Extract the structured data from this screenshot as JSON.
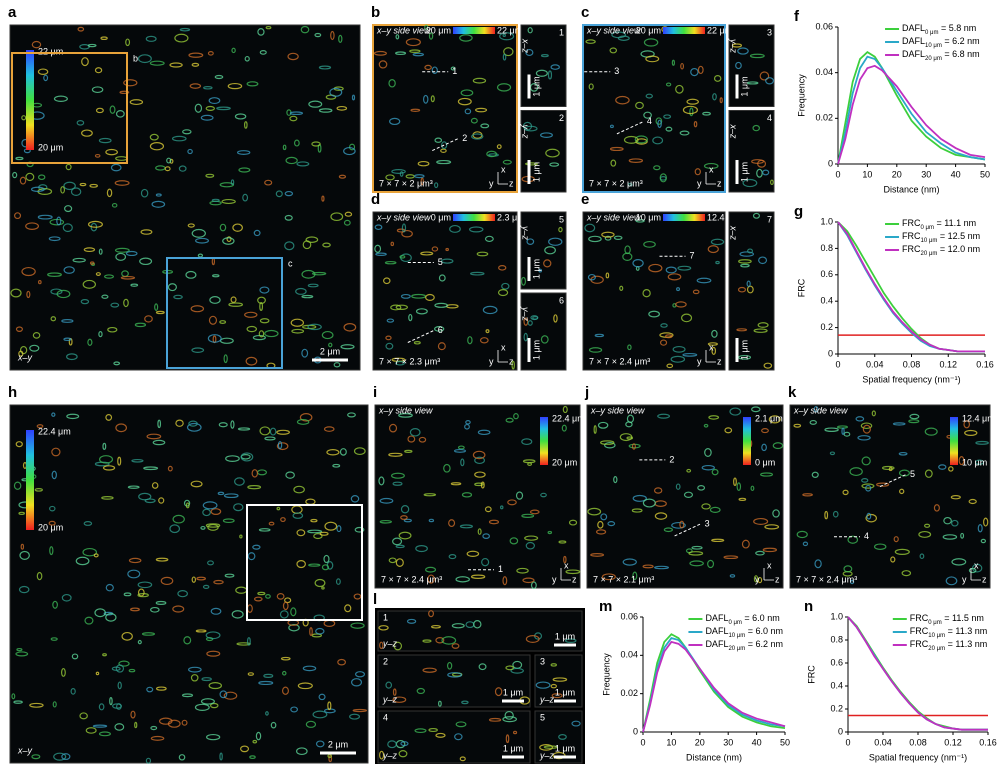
{
  "panels": [
    {
      "label": "a",
      "view": "x–y",
      "scale": "2 μm",
      "cbar": [
        "22 μm",
        "20 μm"
      ],
      "boxes": [
        "b",
        "c"
      ]
    },
    {
      "label": "b",
      "title": "x–y side view",
      "cbar": [
        "20 μm",
        "22 μm"
      ],
      "volume": "7 × 7 × 2 μm³",
      "marks": [
        "1",
        "2"
      ],
      "insets": [
        {
          "plane": "x–z",
          "num": "1",
          "scale": "1 μm"
        },
        {
          "plane": "y–z",
          "num": "2",
          "scale": "1 μm"
        }
      ]
    },
    {
      "label": "c",
      "title": "x–y side view",
      "cbar": [
        "20 μm",
        "22 μm"
      ],
      "volume": "7 × 7 × 2 μm³",
      "marks": [
        "3",
        "4"
      ],
      "insets": [
        {
          "plane": "y–z",
          "num": "3",
          "scale": "1 μm"
        },
        {
          "plane": "x–z",
          "num": "4",
          "scale": "1 μm"
        }
      ]
    },
    {
      "label": "d",
      "title": "x–y side view",
      "cbar": [
        "0 μm",
        "2.3 μm"
      ],
      "volume": "7 × 7 × 2.3 μm³",
      "marks": [
        "5",
        "6"
      ],
      "insets": [
        {
          "plane": "y–z",
          "num": "5",
          "scale": "1 μm"
        },
        {
          "plane": "y–z",
          "num": "6",
          "scale": "1 μm"
        }
      ]
    },
    {
      "label": "e",
      "title": "x–y side view",
      "cbar": [
        "10 μm",
        "12.4 μm"
      ],
      "volume": "7 × 7 × 2.4 μm³",
      "marks": [
        "7"
      ],
      "insets": [
        {
          "plane": "x–z",
          "num": "7",
          "scale": "1 μm"
        }
      ]
    },
    {
      "label": "h",
      "view": "x–y",
      "scale": "2 μm",
      "cbar": [
        "22.4 μm",
        "20 μm"
      ],
      "boxes": [
        "i"
      ]
    },
    {
      "label": "i",
      "title": "x–y side view",
      "cbar": [
        "22.4 μm",
        "20 μm"
      ],
      "volume": "7 × 7 × 2.4 μm³",
      "marks": [
        "1"
      ]
    },
    {
      "label": "j",
      "title": "x–y side view",
      "cbar": [
        "2.1 μm",
        "0 μm"
      ],
      "volume": "7 × 7 × 2.1 μm³",
      "marks": [
        "2",
        "3"
      ]
    },
    {
      "label": "k",
      "title": "x–y side view",
      "cbar": [
        "12.4 μm",
        "10 μm"
      ],
      "volume": "7 × 7 × 2.4 μm³",
      "marks": [
        "4",
        "5"
      ]
    },
    {
      "label": "l",
      "strips": [
        {
          "num": "1",
          "plane": "y–z",
          "scale": "1 μm"
        },
        {
          "num": "2",
          "plane": "y–z",
          "scale": "1 μm"
        },
        {
          "num": "3",
          "plane": "y–z",
          "scale": "1 μm"
        },
        {
          "num": "4",
          "plane": "y–z",
          "scale": "1 μm"
        },
        {
          "num": "5",
          "plane": "y–z",
          "scale": "1 μm"
        }
      ]
    }
  ],
  "axis_glyph": [
    "x",
    "y",
    "z"
  ],
  "chart_data": [
    {
      "type": "line",
      "label": "f",
      "xlabel": "Distance (nm)",
      "ylabel": "Frequency",
      "x": [
        0,
        2.5,
        5,
        7.5,
        10,
        12.5,
        15,
        20,
        25,
        30,
        35,
        40,
        45,
        50
      ],
      "xlim": [
        0,
        50
      ],
      "xticks": [
        0,
        10,
        20,
        30,
        40,
        50
      ],
      "ylim": [
        0,
        0.06
      ],
      "yticks": [
        0,
        0.02,
        0.04,
        0.06
      ],
      "series": [
        {
          "name": "DAFL",
          "sub": "0 μm",
          "value_text": " = 5.8 nm",
          "color": "#3ccf3c",
          "values": [
            0,
            0.018,
            0.036,
            0.046,
            0.049,
            0.047,
            0.042,
            0.03,
            0.019,
            0.012,
            0.007,
            0.004,
            0.003,
            0.002
          ]
        },
        {
          "name": "DAFL",
          "sub": "10 μm",
          "value_text": " = 6.2 nm",
          "color": "#2aa8c8",
          "values": [
            0,
            0.014,
            0.031,
            0.042,
            0.047,
            0.046,
            0.042,
            0.032,
            0.022,
            0.014,
            0.009,
            0.005,
            0.003,
            0.002
          ]
        },
        {
          "name": "DAFL",
          "sub": "20 μm",
          "value_text": " = 6.8 nm",
          "color": "#c030c0",
          "values": [
            0,
            0.011,
            0.026,
            0.037,
            0.042,
            0.043,
            0.041,
            0.034,
            0.025,
            0.017,
            0.011,
            0.007,
            0.004,
            0.003
          ]
        }
      ]
    },
    {
      "type": "line",
      "label": "g",
      "xlabel": "Spatial frequency (nm⁻¹)",
      "ylabel": "FRC",
      "x": [
        0,
        0.01,
        0.02,
        0.03,
        0.04,
        0.05,
        0.06,
        0.07,
        0.08,
        0.09,
        0.1,
        0.11,
        0.12,
        0.13,
        0.14,
        0.15,
        0.16
      ],
      "xlim": [
        0,
        0.16
      ],
      "xticks": [
        0,
        0.04,
        0.08,
        0.12,
        0.16
      ],
      "ylim": [
        0,
        1
      ],
      "yticks": [
        0,
        0.2,
        0.4,
        0.6,
        0.8,
        {
          "value": 1,
          "label": "1.0"
        }
      ],
      "threshold": 0.143,
      "threshold_color": "#e02020",
      "series": [
        {
          "name": "FRC",
          "sub": "0 μm",
          "value_text": " = 11.1 nm",
          "color": "#3ccf3c",
          "values": [
            1,
            0.93,
            0.82,
            0.7,
            0.58,
            0.46,
            0.36,
            0.27,
            0.19,
            0.12,
            0.07,
            0.04,
            0.03,
            0.02,
            0.02,
            0.02,
            0.02
          ]
        },
        {
          "name": "FRC",
          "sub": "10 μm",
          "value_text": " = 12.5 nm",
          "color": "#2aa8c8",
          "values": [
            1,
            0.9,
            0.77,
            0.64,
            0.52,
            0.41,
            0.31,
            0.23,
            0.16,
            0.1,
            0.06,
            0.04,
            0.03,
            0.02,
            0.02,
            0.02,
            0.02
          ]
        },
        {
          "name": "FRC",
          "sub": "20 μm",
          "value_text": " = 12.0 nm",
          "color": "#c030c0",
          "values": [
            1,
            0.91,
            0.78,
            0.65,
            0.53,
            0.42,
            0.32,
            0.24,
            0.17,
            0.11,
            0.07,
            0.04,
            0.03,
            0.02,
            0.02,
            0.02,
            0.02
          ]
        }
      ]
    },
    {
      "type": "line",
      "label": "m",
      "xlabel": "Distance (nm)",
      "ylabel": "Frequency",
      "x": [
        0,
        2.5,
        5,
        7.5,
        10,
        12.5,
        15,
        20,
        25,
        30,
        35,
        40,
        45,
        50
      ],
      "xlim": [
        0,
        50
      ],
      "xticks": [
        0,
        10,
        20,
        30,
        40,
        50
      ],
      "ylim": [
        0,
        0.06
      ],
      "yticks": [
        0,
        0.02,
        0.04,
        0.06
      ],
      "series": [
        {
          "name": "DAFL",
          "sub": "0 μm",
          "value_text": " = 6.0 nm",
          "color": "#3ccf3c",
          "values": [
            0,
            0.017,
            0.036,
            0.047,
            0.051,
            0.049,
            0.044,
            0.032,
            0.021,
            0.013,
            0.008,
            0.005,
            0.003,
            0.002
          ]
        },
        {
          "name": "DAFL",
          "sub": "10 μm",
          "value_text": " = 6.0 nm",
          "color": "#2aa8c8",
          "values": [
            0,
            0.015,
            0.033,
            0.044,
            0.049,
            0.048,
            0.044,
            0.033,
            0.022,
            0.014,
            0.009,
            0.006,
            0.004,
            0.003
          ]
        },
        {
          "name": "DAFL",
          "sub": "20 μm",
          "value_text": " = 6.2 nm",
          "color": "#c030c0",
          "values": [
            0,
            0.014,
            0.031,
            0.042,
            0.047,
            0.046,
            0.043,
            0.033,
            0.023,
            0.015,
            0.01,
            0.007,
            0.005,
            0.003
          ]
        }
      ]
    },
    {
      "type": "line",
      "label": "n",
      "xlabel": "Spatial frequency (nm⁻¹)",
      "ylabel": "FRC",
      "x": [
        0,
        0.01,
        0.02,
        0.03,
        0.04,
        0.05,
        0.06,
        0.07,
        0.08,
        0.09,
        0.1,
        0.11,
        0.12,
        0.13,
        0.14,
        0.15,
        0.16
      ],
      "xlim": [
        0,
        0.16
      ],
      "xticks": [
        0,
        0.04,
        0.08,
        0.12,
        0.16
      ],
      "ylim": [
        0,
        1
      ],
      "yticks": [
        0,
        0.2,
        0.4,
        0.6,
        0.8,
        {
          "value": 1,
          "label": "1.0"
        }
      ],
      "threshold": 0.143,
      "threshold_color": "#e02020",
      "series": [
        {
          "name": "FRC",
          "sub": "0 μm",
          "value_text": " = 11.5 nm",
          "color": "#3ccf3c",
          "values": [
            1,
            0.92,
            0.8,
            0.68,
            0.56,
            0.45,
            0.35,
            0.26,
            0.18,
            0.12,
            0.07,
            0.05,
            0.03,
            0.02,
            0.02,
            0.02,
            0.02
          ]
        },
        {
          "name": "FRC",
          "sub": "10 μm",
          "value_text": " = 11.3 nm",
          "color": "#2aa8c8",
          "values": [
            1,
            0.91,
            0.79,
            0.67,
            0.55,
            0.44,
            0.34,
            0.25,
            0.17,
            0.11,
            0.07,
            0.04,
            0.03,
            0.02,
            0.02,
            0.02,
            0.02
          ]
        },
        {
          "name": "FRC",
          "sub": "20 μm",
          "value_text": " = 11.3 nm",
          "color": "#c030c0",
          "values": [
            1,
            0.91,
            0.79,
            0.66,
            0.55,
            0.44,
            0.34,
            0.25,
            0.17,
            0.11,
            0.07,
            0.04,
            0.03,
            0.02,
            0.02,
            0.02,
            0.02
          ]
        }
      ]
    }
  ]
}
